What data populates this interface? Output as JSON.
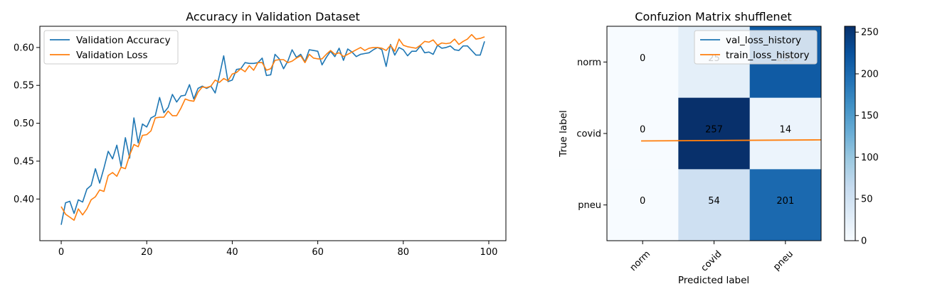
{
  "chart_data": [
    {
      "type": "line",
      "title": "Accuracy in Validation Dataset",
      "xlabel": "",
      "ylabel": "",
      "xlim": [
        -5,
        104
      ],
      "ylim": [
        0.345,
        0.628
      ],
      "xticks": [
        0,
        20,
        40,
        60,
        80,
        100
      ],
      "yticks": [
        0.4,
        0.45,
        0.5,
        0.55,
        0.6
      ],
      "ytick_labels": [
        "0.40",
        "0.45",
        "0.50",
        "0.55",
        "0.60"
      ],
      "legend": "top-left",
      "grid": false,
      "series": [
        {
          "name": "Validation Accuracy",
          "color": "#1f77b4",
          "x": [
            0,
            1,
            2,
            3,
            4,
            5,
            6,
            7,
            8,
            9,
            10,
            11,
            12,
            13,
            14,
            15,
            16,
            17,
            18,
            19,
            20,
            21,
            22,
            23,
            24,
            25,
            26,
            27,
            28,
            29,
            30,
            31,
            32,
            33,
            34,
            35,
            36,
            37,
            38,
            39,
            40,
            41,
            42,
            43,
            44,
            45,
            46,
            47,
            48,
            49,
            50,
            51,
            52,
            53,
            54,
            55,
            56,
            57,
            58,
            59,
            60,
            61,
            62,
            63,
            64,
            65,
            66,
            67,
            68,
            69,
            70,
            71,
            72,
            73,
            74,
            75,
            76,
            77,
            78,
            79,
            80,
            81,
            82,
            83,
            84,
            85,
            86,
            87,
            88,
            89,
            90,
            91,
            92,
            93,
            94,
            95,
            96,
            97,
            98,
            99
          ],
          "values": [
            0.366,
            0.395,
            0.397,
            0.381,
            0.399,
            0.396,
            0.413,
            0.418,
            0.44,
            0.421,
            0.441,
            0.463,
            0.453,
            0.471,
            0.443,
            0.481,
            0.454,
            0.507,
            0.474,
            0.499,
            0.495,
            0.507,
            0.51,
            0.534,
            0.514,
            0.521,
            0.538,
            0.528,
            0.536,
            0.537,
            0.551,
            0.532,
            0.546,
            0.549,
            0.546,
            0.549,
            0.54,
            0.563,
            0.589,
            0.555,
            0.557,
            0.571,
            0.572,
            0.58,
            0.579,
            0.579,
            0.58,
            0.586,
            0.563,
            0.564,
            0.591,
            0.585,
            0.572,
            0.582,
            0.597,
            0.587,
            0.591,
            0.581,
            0.597,
            0.596,
            0.595,
            0.577,
            0.587,
            0.595,
            0.588,
            0.599,
            0.583,
            0.598,
            0.594,
            0.588,
            0.591,
            0.592,
            0.593,
            0.597,
            0.6,
            0.597,
            0.575,
            0.604,
            0.59,
            0.6,
            0.597,
            0.589,
            0.595,
            0.595,
            0.602,
            0.593,
            0.594,
            0.591,
            0.603,
            0.599,
            0.6,
            0.602,
            0.597,
            0.596,
            0.602,
            0.602,
            0.596,
            0.59,
            0.59,
            0.608
          ]
        },
        {
          "name": "Validation Loss",
          "color": "#ff7f0e",
          "x": [
            0,
            1,
            2,
            3,
            4,
            5,
            6,
            7,
            8,
            9,
            10,
            11,
            12,
            13,
            14,
            15,
            16,
            17,
            18,
            19,
            20,
            21,
            22,
            23,
            24,
            25,
            26,
            27,
            28,
            29,
            30,
            31,
            32,
            33,
            34,
            35,
            36,
            37,
            38,
            39,
            40,
            41,
            42,
            43,
            44,
            45,
            46,
            47,
            48,
            49,
            50,
            51,
            52,
            53,
            54,
            55,
            56,
            57,
            58,
            59,
            60,
            61,
            62,
            63,
            64,
            65,
            66,
            67,
            68,
            69,
            70,
            71,
            72,
            73,
            74,
            75,
            76,
            77,
            78,
            79,
            80,
            81,
            82,
            83,
            84,
            85,
            86,
            87,
            88,
            89,
            90,
            91,
            92,
            93,
            94,
            95,
            96,
            97,
            98,
            99
          ],
          "values": [
            0.39,
            0.38,
            0.376,
            0.372,
            0.387,
            0.379,
            0.387,
            0.399,
            0.403,
            0.412,
            0.41,
            0.431,
            0.435,
            0.43,
            0.442,
            0.44,
            0.458,
            0.472,
            0.469,
            0.484,
            0.485,
            0.49,
            0.507,
            0.508,
            0.508,
            0.516,
            0.51,
            0.51,
            0.52,
            0.532,
            0.53,
            0.529,
            0.541,
            0.548,
            0.547,
            0.549,
            0.557,
            0.554,
            0.559,
            0.556,
            0.565,
            0.567,
            0.572,
            0.568,
            0.576,
            0.57,
            0.58,
            0.58,
            0.57,
            0.572,
            0.583,
            0.584,
            0.584,
            0.58,
            0.582,
            0.586,
            0.589,
            0.58,
            0.591,
            0.586,
            0.585,
            0.585,
            0.591,
            0.596,
            0.591,
            0.593,
            0.588,
            0.591,
            0.594,
            0.597,
            0.6,
            0.596,
            0.599,
            0.6,
            0.6,
            0.599,
            0.596,
            0.603,
            0.595,
            0.611,
            0.603,
            0.601,
            0.6,
            0.599,
            0.603,
            0.608,
            0.607,
            0.61,
            0.603,
            0.606,
            0.605,
            0.606,
            0.611,
            0.604,
            0.608,
            0.611,
            0.617,
            0.611,
            0.612,
            0.614
          ]
        }
      ]
    },
    {
      "type": "heatmap",
      "title": "Confuzion Matrix shufflenet",
      "xlabel": "Predicted label",
      "ylabel": "True label",
      "categories_x": [
        "norm",
        "covid",
        "pneu"
      ],
      "categories_y": [
        "norm",
        "covid",
        "pneu"
      ],
      "matrix": [
        [
          0,
          25,
          215
        ],
        [
          0,
          257,
          14
        ],
        [
          0,
          54,
          201
        ]
      ],
      "cell_labels": [
        [
          "0",
          "25",
          "215"
        ],
        [
          "0",
          "257",
          "14"
        ],
        [
          "0",
          "54",
          "201"
        ]
      ],
      "colorbar": {
        "min": 0,
        "max": 257,
        "ticks": [
          0,
          50,
          100,
          150,
          200,
          250
        ]
      },
      "colormap": [
        "#f7fbff",
        "#deebf7",
        "#c6dbef",
        "#9ecae1",
        "#6baed6",
        "#4292c6",
        "#2171b5",
        "#08519c",
        "#08306b"
      ],
      "overlay_series": [
        {
          "name": "val_loss_history",
          "color": "#1f77b4",
          "values": []
        },
        {
          "name": "train_loss_history",
          "color": "#ff7f0e",
          "values": [
            0.0,
            0.0
          ]
        }
      ],
      "legend": "top-right"
    }
  ]
}
